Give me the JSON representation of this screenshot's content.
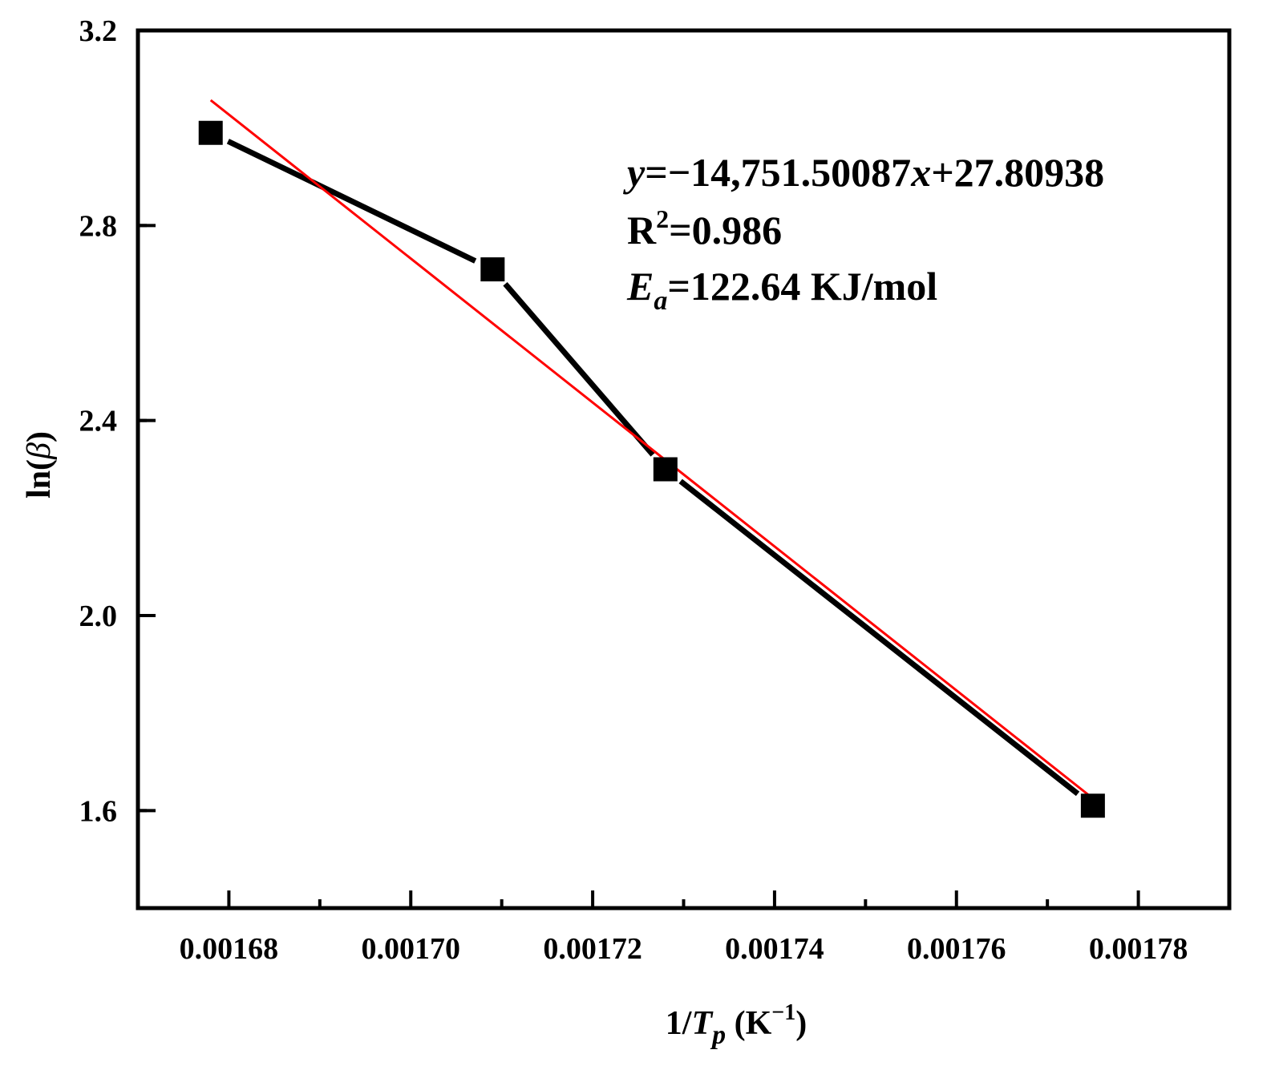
{
  "chart_data": {
    "type": "line",
    "title": "",
    "xlabel": {
      "prefix": "1/",
      "var": "T",
      "sub": "p",
      "unit_open": " (K",
      "unit_sup": "−1",
      "unit_close": ")"
    },
    "ylabel": {
      "prefix": "ln(",
      "var": "β",
      "suffix": ")"
    },
    "xlim": [
      0.00167,
      0.00179
    ],
    "ylim": [
      1.4,
      3.2
    ],
    "xticks": [
      0.00168,
      0.0017,
      0.00172,
      0.00174,
      0.00176,
      0.00178
    ],
    "xtick_labels": [
      "0.00168",
      "0.00170",
      "0.00172",
      "0.00174",
      "0.00176",
      "0.00178"
    ],
    "yticks": [
      1.6,
      2.0,
      2.4,
      2.8,
      3.2
    ],
    "ytick_labels": [
      "1.6",
      "2.0",
      "2.4",
      "2.8",
      "3.2"
    ],
    "grid": false,
    "series": [
      {
        "style": "line+square-markers",
        "color": "#000000",
        "x": [
          0.001678,
          0.001709,
          0.001728,
          0.001775
        ],
        "y": [
          2.99,
          2.71,
          2.3,
          1.61
        ]
      },
      {
        "style": "fit-line",
        "color": "#ff0000",
        "x": [
          0.001678,
          0.001775
        ],
        "y": [
          3.057,
          1.625
        ]
      }
    ],
    "annotations": {
      "equation": {
        "var_y": "y",
        "eq": "=−14,751.50087",
        "var_x": "x",
        "rest": "+27.80938"
      },
      "r2": {
        "base": "R",
        "sup": "2",
        "rest": "=0.986"
      },
      "ea": {
        "base": "E",
        "sub": "a",
        "rest": "=122.64 KJ/mol"
      }
    }
  }
}
